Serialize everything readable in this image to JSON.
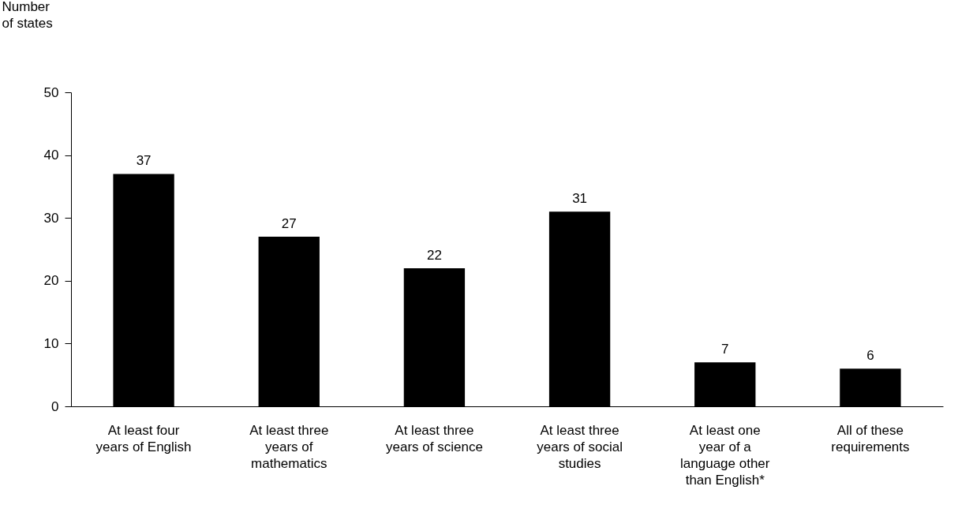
{
  "chart_data": {
    "type": "bar",
    "ylabel": "Number of states",
    "categories": [
      "At least four years of English",
      "At least three years of mathematics",
      "At least three years of science",
      "At least three years of social studies",
      "At least one year of a language other than English*",
      "All of these requirements"
    ],
    "values": [
      37,
      27,
      22,
      31,
      7,
      6
    ],
    "color": "#000000",
    "ylim": [
      0,
      50
    ],
    "yticks": [
      0,
      10,
      20,
      30,
      40,
      50
    ],
    "grid": false,
    "data_labels": true
  }
}
